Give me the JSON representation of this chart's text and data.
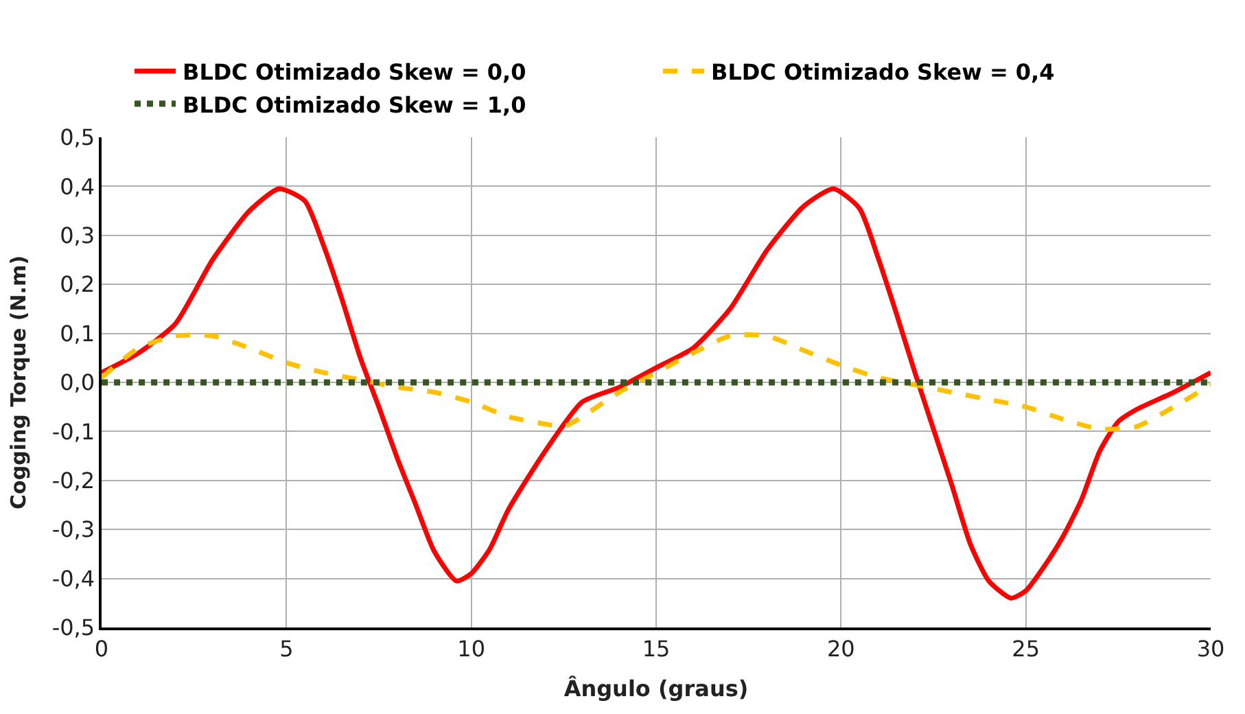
{
  "chart_data": {
    "type": "line",
    "xlabel": "Ângulo (graus)",
    "ylabel": "Cogging Torque (N.m)",
    "xlim": [
      0,
      30
    ],
    "xticks": [
      0,
      5,
      10,
      15,
      20,
      25,
      30
    ],
    "ylim": [
      -0.5,
      0.5
    ],
    "yticks": [
      {
        "value": -0.5,
        "label": "-0,5"
      },
      {
        "value": -0.4,
        "label": "-0,4"
      },
      {
        "value": -0.3,
        "label": "-0,3"
      },
      {
        "value": -0.2,
        "label": "-0,2"
      },
      {
        "value": -0.1,
        "label": "-0,1"
      },
      {
        "value": 0,
        "label": "0,0"
      },
      {
        "value": 0.1,
        "label": "0,1"
      },
      {
        "value": 0.2,
        "label": "0,2"
      },
      {
        "value": 0.3,
        "label": "0,3"
      },
      {
        "value": 0.4,
        "label": "0,4"
      },
      {
        "value": 0.5,
        "label": "0,5"
      }
    ],
    "grid": true,
    "legend": "top",
    "marker": "none",
    "series": [
      {
        "name": "BLDC Otimizado Skew = 0,0",
        "color": "#ff0000",
        "line_style": "solid",
        "x": [
          0,
          1,
          2,
          3,
          4,
          4.8,
          5.5,
          6,
          6.5,
          7,
          7.5,
          8,
          8.5,
          9,
          9.6,
          10,
          10.5,
          11,
          12,
          13,
          14,
          15,
          16,
          17,
          18,
          19,
          19.8,
          20.5,
          21,
          21.5,
          22,
          22.5,
          23,
          23.5,
          24,
          24.6,
          25,
          25.5,
          26,
          26.5,
          27,
          27.5,
          28,
          29,
          30
        ],
        "values": [
          0.02,
          0.06,
          0.12,
          0.25,
          0.35,
          0.395,
          0.37,
          0.28,
          0.17,
          0.05,
          -0.05,
          -0.155,
          -0.25,
          -0.345,
          -0.405,
          -0.39,
          -0.34,
          -0.26,
          -0.14,
          -0.04,
          -0.01,
          0.03,
          0.07,
          0.15,
          0.27,
          0.36,
          0.395,
          0.355,
          0.255,
          0.14,
          0.02,
          -0.095,
          -0.21,
          -0.33,
          -0.405,
          -0.44,
          -0.425,
          -0.375,
          -0.315,
          -0.24,
          -0.14,
          -0.08,
          -0.055,
          -0.02,
          0.02
        ]
      },
      {
        "name": "BLDC Otimizado Skew = 0,4",
        "color": "#ffc000",
        "line_style": "dashed",
        "x": [
          0,
          1,
          2,
          3,
          4,
          5,
          6,
          7,
          8,
          9,
          10,
          11,
          12,
          12.5,
          13,
          14,
          15,
          16,
          17,
          18,
          19,
          20,
          21,
          22,
          23,
          24,
          25,
          26,
          27,
          28,
          29,
          30
        ],
        "values": [
          0.01,
          0.07,
          0.095,
          0.095,
          0.07,
          0.04,
          0.02,
          0.005,
          -0.01,
          -0.02,
          -0.04,
          -0.07,
          -0.085,
          -0.09,
          -0.07,
          -0.02,
          0.02,
          0.06,
          0.095,
          0.095,
          0.065,
          0.035,
          0.01,
          -0.005,
          -0.02,
          -0.035,
          -0.05,
          -0.075,
          -0.095,
          -0.09,
          -0.05,
          -0.005
        ]
      },
      {
        "name": "BLDC Otimizado Skew = 1,0",
        "color": "#375623",
        "line_style": "dotted",
        "x": [
          0,
          5,
          10,
          15,
          20,
          25,
          30
        ],
        "values": [
          0,
          0,
          0,
          0,
          0,
          0,
          0
        ]
      }
    ]
  }
}
